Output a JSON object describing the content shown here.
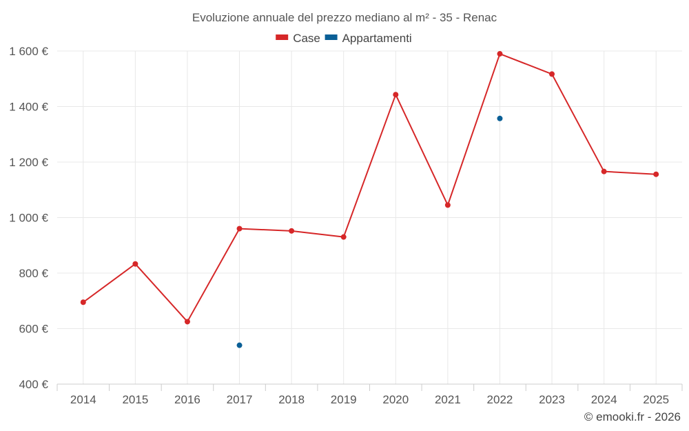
{
  "chart_data": {
    "type": "line",
    "title": "Evoluzione annuale del prezzo mediano al m² - 35 - Renac",
    "xlabel": "",
    "ylabel": "",
    "categories": [
      "2014",
      "2015",
      "2016",
      "2017",
      "2018",
      "2019",
      "2020",
      "2021",
      "2022",
      "2023",
      "2024",
      "2025"
    ],
    "ylim": [
      400,
      1600
    ],
    "yticks": [
      400,
      600,
      800,
      1000,
      1200,
      1400,
      1600
    ],
    "ytick_labels": [
      "400 €",
      "600 €",
      "800 €",
      "1 000 €",
      "1 200 €",
      "1 400 €",
      "1 600 €"
    ],
    "series": [
      {
        "name": "Case",
        "color": "#d62728",
        "values": [
          695,
          833,
          625,
          960,
          952,
          930,
          1443,
          1045,
          1590,
          1517,
          1166,
          1156
        ]
      },
      {
        "name": "Appartamenti",
        "color": "#0a5f96",
        "values": [
          null,
          null,
          null,
          540,
          null,
          null,
          null,
          null,
          1357,
          null,
          null,
          null
        ]
      }
    ],
    "legend": "top-center",
    "grid": true,
    "credit": "© emooki.fr - 2026"
  }
}
